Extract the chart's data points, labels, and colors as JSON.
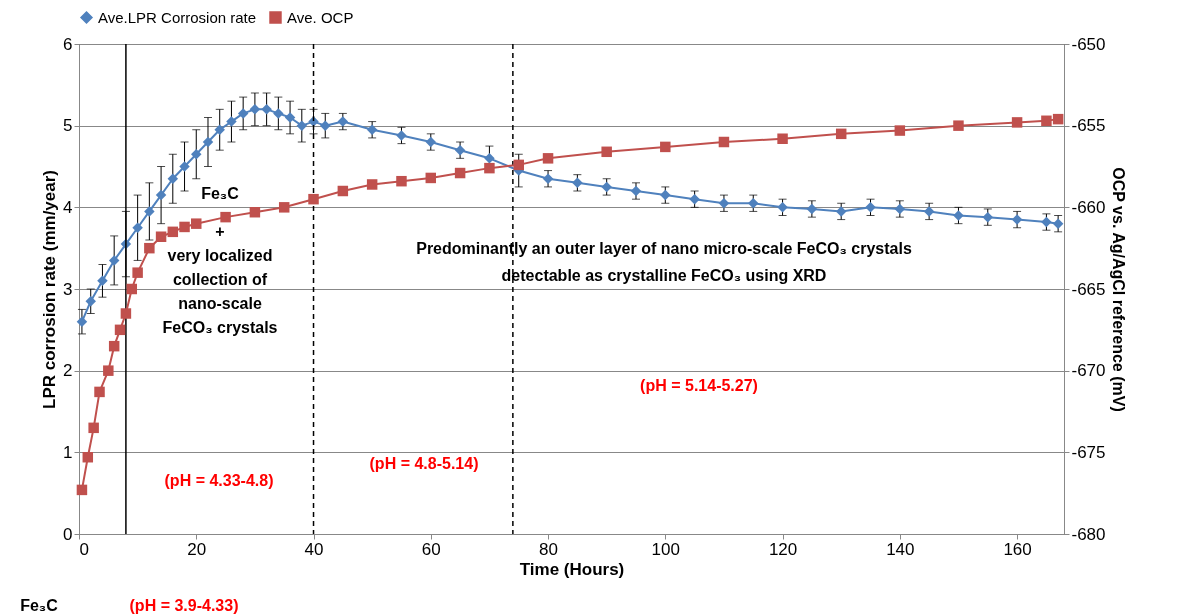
{
  "chart_data": {
    "type": "line",
    "xlabel": "Time (Hours)",
    "ylabel": "LPR corrosion rate (mm/year)",
    "y2label": "OCP vs. Ag/AgCl reference (mV)",
    "xlim": [
      0,
      168
    ],
    "xticks": [
      0,
      20,
      40,
      60,
      80,
      100,
      120,
      140,
      160
    ],
    "ylim": [
      0,
      6
    ],
    "yticks": [
      0,
      1,
      2,
      3,
      4,
      5,
      6
    ],
    "y2lim": [
      -680,
      -650
    ],
    "y2ticks": [
      -680,
      -675,
      -670,
      -665,
      -660,
      -655,
      -650
    ],
    "grid": "y",
    "legend": "top",
    "series": [
      {
        "name": "Ave.LPR Corrosion rate",
        "color": "#4f81bd",
        "marker": "diamond",
        "x": [
          0.5,
          2,
          4,
          6,
          8,
          10,
          12,
          14,
          16,
          18,
          20,
          22,
          24,
          26,
          28,
          30,
          32,
          34,
          36,
          38,
          40,
          42,
          45,
          50,
          55,
          60,
          65,
          70,
          75,
          80,
          85,
          90,
          95,
          100,
          105,
          110,
          115,
          120,
          125,
          130,
          135,
          140,
          145,
          150,
          155,
          160,
          165,
          167
        ],
        "values": [
          2.6,
          2.85,
          3.1,
          3.35,
          3.55,
          3.75,
          3.95,
          4.15,
          4.35,
          4.5,
          4.65,
          4.8,
          4.95,
          5.05,
          5.15,
          5.2,
          5.2,
          5.15,
          5.1,
          5.0,
          5.05,
          5.0,
          5.05,
          4.95,
          4.88,
          4.8,
          4.7,
          4.6,
          4.45,
          4.35,
          4.3,
          4.25,
          4.2,
          4.15,
          4.1,
          4.05,
          4.05,
          4.0,
          3.98,
          3.95,
          4.0,
          3.98,
          3.95,
          3.9,
          3.88,
          3.85,
          3.82,
          3.8
        ],
        "errors": [
          0.15,
          0.15,
          0.2,
          0.3,
          0.4,
          0.4,
          0.35,
          0.35,
          0.3,
          0.3,
          0.3,
          0.3,
          0.25,
          0.25,
          0.2,
          0.2,
          0.2,
          0.2,
          0.2,
          0.2,
          0.15,
          0.15,
          0.1,
          0.1,
          0.1,
          0.1,
          0.1,
          0.15,
          0.2,
          0.1,
          0.1,
          0.1,
          0.1,
          0.1,
          0.1,
          0.1,
          0.1,
          0.1,
          0.1,
          0.1,
          0.1,
          0.1,
          0.1,
          0.1,
          0.1,
          0.1,
          0.1,
          0.1
        ]
      },
      {
        "name": "Ave. OCP",
        "color": "#c0504d",
        "marker": "square",
        "axis": "y2",
        "x": [
          0.5,
          1.5,
          2.5,
          3.5,
          5,
          6,
          7,
          8,
          9,
          10,
          12,
          14,
          16,
          18,
          20,
          25,
          30,
          35,
          40,
          45,
          50,
          55,
          60,
          65,
          70,
          75,
          80,
          90,
          100,
          110,
          120,
          130,
          140,
          150,
          160,
          165,
          167
        ],
        "values": [
          -677.3,
          -675.3,
          -673.5,
          -671.3,
          -670,
          -668.5,
          -667.5,
          -666.5,
          -665,
          -664,
          -662.5,
          -661.8,
          -661.5,
          -661.2,
          -661,
          -660.6,
          -660.3,
          -660,
          -659.5,
          -659,
          -658.6,
          -658.4,
          -658.2,
          -657.9,
          -657.6,
          -657.4,
          -657,
          -656.6,
          -656.3,
          -656,
          -655.8,
          -655.5,
          -655.3,
          -655,
          -654.8,
          -654.7,
          -654.6
        ]
      }
    ],
    "ref_lines": [
      {
        "axis": "x",
        "value": 8,
        "line_style": "solid"
      },
      {
        "axis": "x",
        "value": 40,
        "line_style": "dashed"
      },
      {
        "axis": "x",
        "value": 74,
        "line_style": "dashed"
      }
    ],
    "annotations": [
      "Fe₃C",
      "+",
      "very localized",
      "collection of",
      "nano-scale",
      "FeCO₃ crystals",
      "(pH = 4.33-4.8)",
      "(pH = 4.8-5.14)",
      "Predominantly an outer layer of nano micro-scale FeCO₃ crystals",
      "detectable  as crystalline FeCO₃  using XRD",
      "(pH = 5.14-5.27)",
      "Fe₃C",
      "(pH = 3.9-4.33)"
    ]
  }
}
